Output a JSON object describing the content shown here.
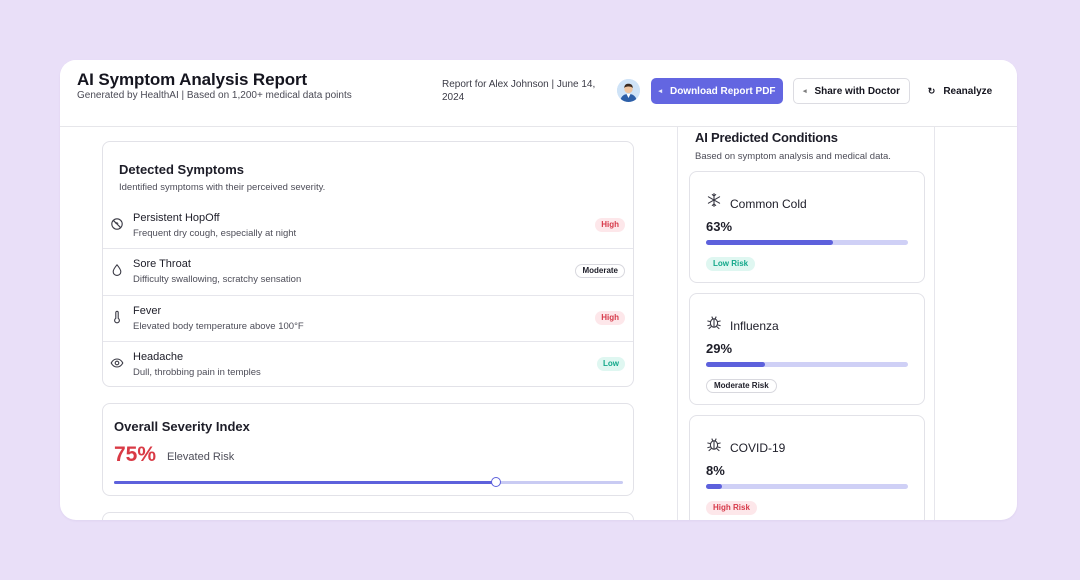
{
  "header": {
    "title": "AI Symptom Analysis Report",
    "subtitle": "Generated by HealthAI | Based on 1,200+ medical data points",
    "report_for": "Report for Alex Johnson | June 14, 2024",
    "download_label": "Download Report PDF",
    "share_label": "Share with Doctor",
    "reanalyze_label": "Reanalyze"
  },
  "symptoms": {
    "title": "Detected Symptoms",
    "description": "Identified symptoms with their perceived severity.",
    "items": [
      {
        "name": "Persistent HopOff",
        "description": "Frequent dry cough, especially at night",
        "severity": "High",
        "icon": "cough-icon"
      },
      {
        "name": "Sore Throat",
        "description": "Difficulty swallowing, scratchy sensation",
        "severity": "Moderate",
        "icon": "droplet-icon"
      },
      {
        "name": "Fever",
        "description": "Elevated body temperature above 100°F",
        "severity": "High",
        "icon": "thermometer-icon"
      },
      {
        "name": "Headache",
        "description": "Dull, throbbing pain in temples",
        "severity": "Low",
        "icon": "eye-icon"
      }
    ]
  },
  "severity": {
    "title": "Overall Severity Index",
    "value": "75%",
    "label": "Elevated Risk",
    "level": 0.75
  },
  "predictions": {
    "title": "AI Predicted Conditions",
    "description": "Based on symptom analysis and medical data.",
    "conditions": [
      {
        "name": "Common Cold",
        "percent": "63%",
        "level": 0.63,
        "risk": "Low Risk",
        "risk_type": "low",
        "icon": "snowflake-icon"
      },
      {
        "name": "Influenza",
        "percent": "29%",
        "level": 0.29,
        "risk": "Moderate Risk",
        "risk_type": "moderate",
        "icon": "virus-icon"
      },
      {
        "name": "COVID-19",
        "percent": "8%",
        "level": 0.08,
        "risk": "High Risk",
        "risk_type": "high",
        "icon": "virus-icon"
      }
    ]
  },
  "colors": {
    "accent": "#6366e1",
    "high": "#d63a4a",
    "low": "#13a88a",
    "background": "#e9dff8"
  }
}
